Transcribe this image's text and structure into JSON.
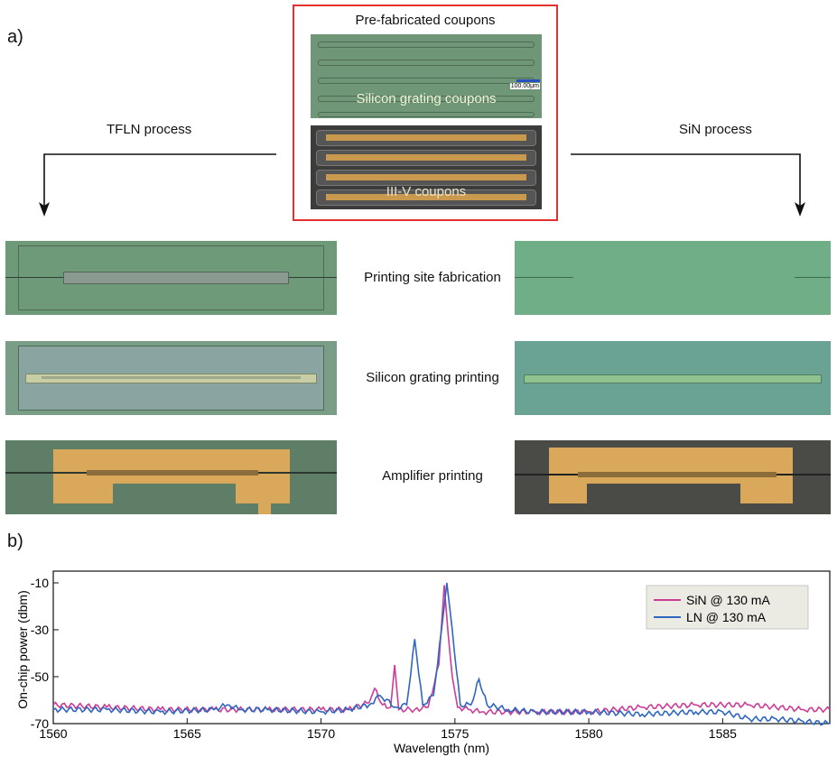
{
  "figure": {
    "panel_a": "a)",
    "panel_b": "b)",
    "coupons_title": "Pre-fabricated coupons",
    "silicon_coupons_label": "Silicon grating coupons",
    "iiiv_coupons_label": "III-V coupons",
    "scale_bar": "100.00μm",
    "tfln_process": "TFLN process",
    "sin_process": "SiN process",
    "steps": [
      "Printing site fabrication",
      "Silicon grating printing",
      "Amplifier printing"
    ]
  },
  "colors": {
    "red_box": "#e23030",
    "sin_line": "#cc3d96",
    "ln_line": "#2f66c0",
    "legend_bg": "#ecebe3",
    "micro_green": "#6e9a7a",
    "sin_green": "#6fae86",
    "gold": "#d9a85a",
    "dark_bg": "#4a4a46"
  },
  "chart_data": {
    "type": "line",
    "xlabel": "Wavelength (nm)",
    "ylabel": "On-chip power (dbm)",
    "xlim": [
      1560,
      1589
    ],
    "ylim": [
      -70,
      -5
    ],
    "xticks": [
      1560,
      1565,
      1570,
      1575,
      1580,
      1585
    ],
    "yticks": [
      -10,
      -30,
      -50,
      -70
    ],
    "legend_position": "top-right",
    "series": [
      {
        "name": "SiN @ 130 mA",
        "x": [
          1560,
          1562,
          1564,
          1566,
          1568,
          1570,
          1571,
          1571.8,
          1572.0,
          1572.3,
          1572.6,
          1572.75,
          1572.9,
          1573.5,
          1574.0,
          1574.4,
          1574.6,
          1574.75,
          1574.9,
          1575.1,
          1575.5,
          1576,
          1578,
          1580,
          1582,
          1584,
          1586,
          1588,
          1589
        ],
        "y": [
          -62,
          -63,
          -64,
          -64,
          -64,
          -64,
          -64,
          -61,
          -55,
          -62,
          -63,
          -45,
          -64,
          -64,
          -63,
          -45,
          -11,
          -32,
          -50,
          -63,
          -64,
          -65,
          -65,
          -65,
          -63,
          -62,
          -62,
          -64,
          -64
        ]
      },
      {
        "name": "LN @ 130 mA",
        "x": [
          1560,
          1562,
          1564,
          1566,
          1566.5,
          1567,
          1568,
          1570,
          1571,
          1571.8,
          1572.2,
          1572.8,
          1573.2,
          1573.5,
          1573.8,
          1574.2,
          1574.5,
          1574.7,
          1574.9,
          1575.2,
          1575.6,
          1575.9,
          1576.2,
          1577,
          1578,
          1580,
          1582,
          1584,
          1585,
          1586,
          1587,
          1588,
          1589
        ],
        "y": [
          -64,
          -64,
          -65,
          -64,
          -62,
          -64,
          -64,
          -65,
          -64,
          -62,
          -58,
          -63,
          -62,
          -34,
          -62,
          -58,
          -30,
          -10,
          -30,
          -62,
          -62,
          -51,
          -62,
          -64,
          -65,
          -65,
          -66,
          -65,
          -65,
          -68,
          -68,
          -69,
          -70
        ]
      }
    ]
  }
}
